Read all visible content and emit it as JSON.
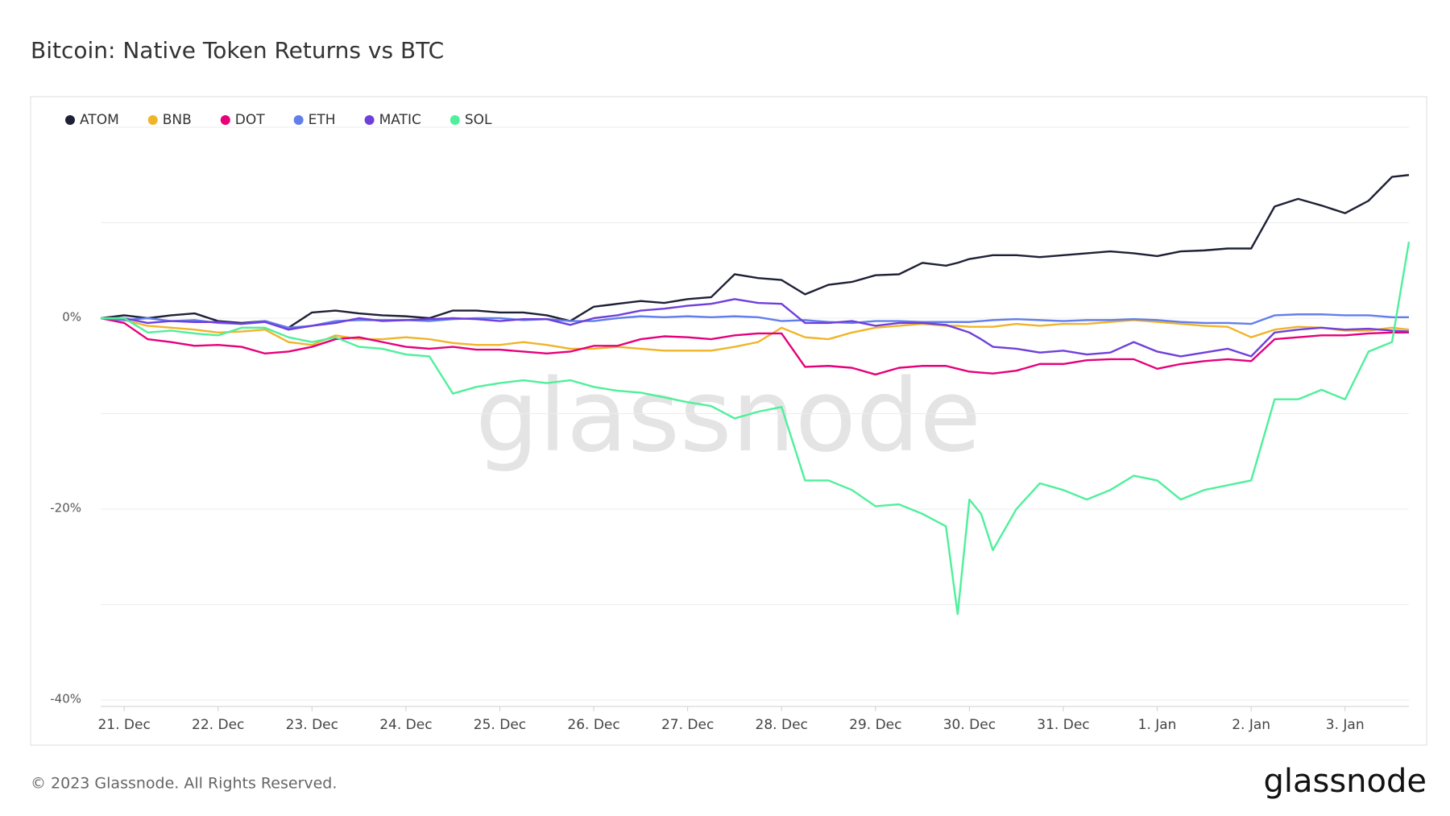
{
  "chart_data": {
    "type": "line",
    "title": "Bitcoin: Native Token Returns vs BTC",
    "watermark": "glassnode",
    "x": [
      -0.25,
      0,
      0.25,
      0.5,
      0.75,
      1,
      1.25,
      1.5,
      1.75,
      2,
      2.25,
      2.5,
      2.75,
      3,
      3.25,
      3.5,
      3.75,
      4,
      4.25,
      4.5,
      4.75,
      5,
      5.25,
      5.5,
      5.75,
      6,
      6.25,
      6.5,
      6.75,
      7,
      7.25,
      7.5,
      7.75,
      8,
      8.25,
      8.5,
      8.75,
      8.875,
      9,
      9.125,
      9.25,
      9.5,
      9.75,
      10,
      10.25,
      10.5,
      10.75,
      11,
      11.25,
      11.5,
      11.75,
      12,
      12.25,
      12.5,
      12.75,
      13,
      13.25,
      13.5,
      13.68
    ],
    "xlim": [
      -0.25,
      13.68
    ],
    "xticks": [
      {
        "value": 0,
        "label": "21. Dec"
      },
      {
        "value": 1,
        "label": "22. Dec"
      },
      {
        "value": 2,
        "label": "23. Dec"
      },
      {
        "value": 3,
        "label": "24. Dec"
      },
      {
        "value": 4,
        "label": "25. Dec"
      },
      {
        "value": 5,
        "label": "26. Dec"
      },
      {
        "value": 6,
        "label": "27. Dec"
      },
      {
        "value": 7,
        "label": "28. Dec"
      },
      {
        "value": 8,
        "label": "29. Dec"
      },
      {
        "value": 9,
        "label": "30. Dec"
      },
      {
        "value": 10,
        "label": "31. Dec"
      },
      {
        "value": 11,
        "label": "1. Jan"
      },
      {
        "value": 12,
        "label": "2. Jan"
      },
      {
        "value": 13,
        "label": "3. Jan"
      }
    ],
    "ylim": [
      -40,
      20
    ],
    "yticks": [
      {
        "value": 0,
        "label": "0%"
      },
      {
        "value": -20,
        "label": "-20%"
      },
      {
        "value": -40,
        "label": "-40%"
      }
    ],
    "minor_gridlines": [
      20,
      10,
      -10,
      -30
    ],
    "grid": true,
    "legend": "top-left",
    "series": [
      {
        "name": "ATOM",
        "color": "#1e2035",
        "values": [
          0,
          0.3,
          0,
          0.3,
          0.5,
          -0.3,
          -0.5,
          -0.3,
          -1.0,
          0.6,
          0.8,
          0.5,
          0.3,
          0.2,
          0,
          0.8,
          0.8,
          0.6,
          0.6,
          0.3,
          -0.3,
          1.2,
          1.5,
          1.8,
          1.6,
          2.0,
          2.2,
          4.6,
          4.2,
          4.0,
          2.5,
          3.5,
          3.8,
          4.5,
          4.6,
          5.8,
          5.5,
          5.8,
          6.2,
          6.4,
          6.6,
          6.6,
          6.4,
          6.6,
          6.8,
          7.0,
          6.8,
          6.5,
          7.0,
          7.1,
          7.3,
          7.3,
          11.7,
          12.5,
          11.8,
          11.0,
          12.3,
          14.8,
          15.0
        ]
      },
      {
        "name": "BNB",
        "color": "#f0b429",
        "values": [
          0,
          -0.2,
          -0.8,
          -1.0,
          -1.2,
          -1.5,
          -1.4,
          -1.2,
          -2.5,
          -2.8,
          -1.8,
          -2.2,
          -2.2,
          -2.0,
          -2.2,
          -2.6,
          -2.8,
          -2.8,
          -2.5,
          -2.8,
          -3.2,
          -3.2,
          -3.0,
          -3.2,
          -3.4,
          -3.4,
          -3.4,
          -3.0,
          -2.5,
          -1.0,
          -2.0,
          -2.2,
          -1.5,
          -1.0,
          -0.8,
          -0.6,
          -0.8,
          -0.8,
          -0.9,
          -0.9,
          -0.9,
          -0.6,
          -0.8,
          -0.6,
          -0.6,
          -0.4,
          -0.2,
          -0.4,
          -0.6,
          -0.8,
          -0.9,
          -2.0,
          -1.2,
          -0.9,
          -1.0,
          -1.3,
          -1.3,
          -1.0,
          -1.2
        ]
      },
      {
        "name": "DOT",
        "color": "#e6007a",
        "values": [
          0,
          -0.5,
          -2.2,
          -2.5,
          -2.9,
          -2.8,
          -3.0,
          -3.7,
          -3.5,
          -3.0,
          -2.2,
          -2.0,
          -2.5,
          -3.0,
          -3.2,
          -3.0,
          -3.3,
          -3.3,
          -3.5,
          -3.7,
          -3.5,
          -2.9,
          -2.9,
          -2.2,
          -1.9,
          -2.0,
          -2.2,
          -1.8,
          -1.6,
          -1.6,
          -5.1,
          -5.0,
          -5.2,
          -5.9,
          -5.2,
          -5.0,
          -5.0,
          -5.3,
          -5.6,
          -5.7,
          -5.8,
          -5.5,
          -4.8,
          -4.8,
          -4.4,
          -4.3,
          -4.3,
          -5.3,
          -4.8,
          -4.5,
          -4.3,
          -4.5,
          -2.2,
          -2.0,
          -1.8,
          -1.8,
          -1.6,
          -1.5,
          -1.5
        ]
      },
      {
        "name": "ETH",
        "color": "#627eea",
        "values": [
          0,
          -0.2,
          0,
          -0.3,
          -0.2,
          -0.5,
          -0.6,
          -0.3,
          -1.0,
          -0.8,
          -0.3,
          -0.2,
          -0.2,
          -0.2,
          -0.3,
          -0.1,
          0,
          0,
          -0.2,
          -0.1,
          -0.3,
          -0.3,
          0,
          0.2,
          0.1,
          0.2,
          0.1,
          0.2,
          0.1,
          -0.3,
          -0.2,
          -0.4,
          -0.5,
          -0.3,
          -0.3,
          -0.4,
          -0.4,
          -0.4,
          -0.4,
          -0.3,
          -0.2,
          -0.1,
          -0.2,
          -0.3,
          -0.2,
          -0.2,
          -0.1,
          -0.2,
          -0.4,
          -0.5,
          -0.5,
          -0.6,
          0.3,
          0.4,
          0.4,
          0.3,
          0.3,
          0.1,
          0.1
        ]
      },
      {
        "name": "MATIC",
        "color": "#6f3fdc",
        "values": [
          0,
          0,
          -0.5,
          -0.3,
          -0.4,
          -0.4,
          -0.6,
          -0.4,
          -1.2,
          -0.8,
          -0.5,
          0,
          -0.3,
          -0.2,
          -0.1,
          0,
          -0.1,
          -0.3,
          -0.1,
          -0.1,
          -0.7,
          0,
          0.3,
          0.8,
          1.0,
          1.3,
          1.5,
          2.0,
          1.6,
          1.5,
          -0.5,
          -0.5,
          -0.3,
          -0.8,
          -0.5,
          -0.5,
          -0.7,
          -1.1,
          -1.5,
          -2.2,
          -3.0,
          -3.2,
          -3.6,
          -3.4,
          -3.8,
          -3.6,
          -2.5,
          -3.5,
          -4.0,
          -3.6,
          -3.2,
          -4.0,
          -1.5,
          -1.2,
          -1.0,
          -1.2,
          -1.1,
          -1.3,
          -1.4
        ]
      },
      {
        "name": "SOL",
        "color": "#4ef09a",
        "values": [
          0,
          0,
          -1.5,
          -1.3,
          -1.6,
          -1.8,
          -1.0,
          -1.0,
          -2.0,
          -2.5,
          -2.0,
          -3.0,
          -3.2,
          -3.8,
          -4.0,
          -7.9,
          -7.2,
          -6.8,
          -6.5,
          -6.8,
          -6.5,
          -7.2,
          -7.6,
          -7.8,
          -8.3,
          -8.8,
          -9.2,
          -10.5,
          -9.8,
          -9.3,
          -17.0,
          -17.0,
          -18.0,
          -19.7,
          -19.5,
          -20.5,
          -21.8,
          -31.0,
          -19.0,
          -20.5,
          -24.3,
          -20.0,
          -17.3,
          -18.0,
          -19.0,
          -18.0,
          -16.5,
          -17.0,
          -19.0,
          -18.0,
          -17.5,
          -17.0,
          -8.5,
          -8.5,
          -7.5,
          -8.5,
          -3.5,
          -2.5,
          8.0
        ]
      }
    ]
  },
  "footer": "© 2023 Glassnode. All Rights Reserved.",
  "logo": "glassnode"
}
